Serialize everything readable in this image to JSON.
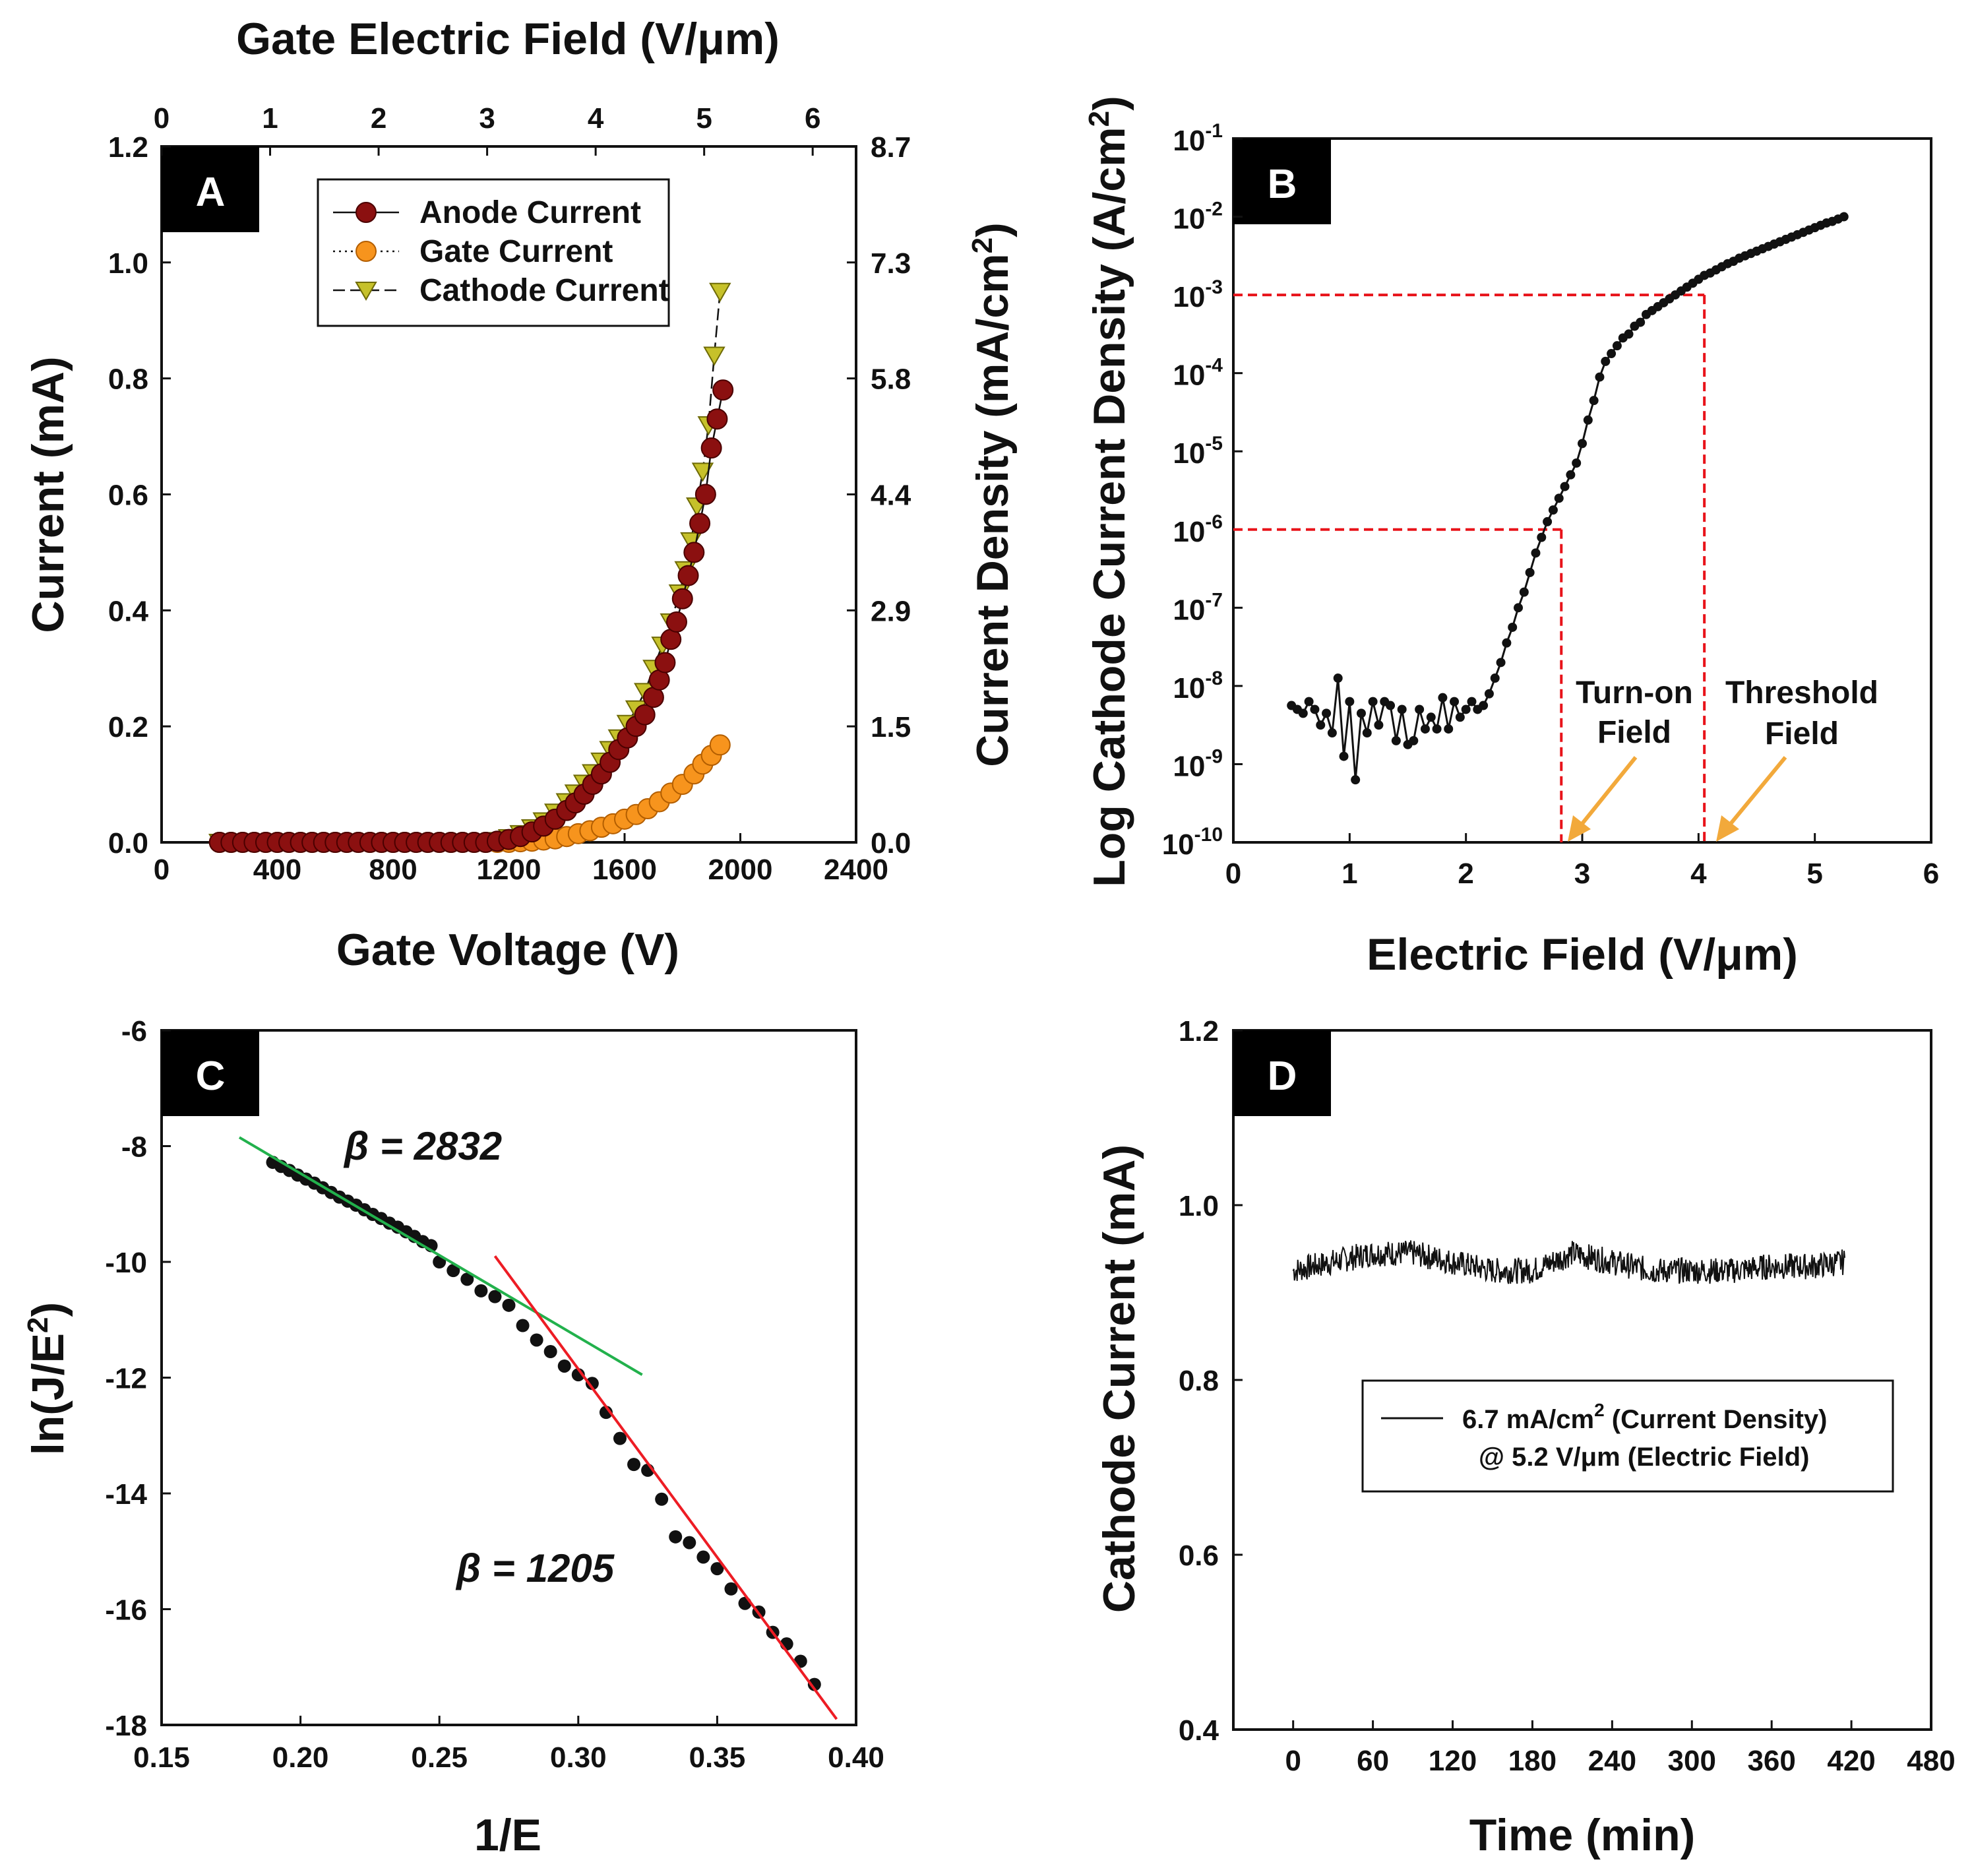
{
  "colors": {
    "anode": "#8b1010",
    "gate": "#f7941d",
    "cathode": "#c6c12a",
    "dash": "#e8131a",
    "arrow": "#f2a93b",
    "fitGreen": "#22b14c",
    "fitRed": "#ed1c24",
    "ink": "#111111"
  },
  "chart_data": [
    {
      "panel": "A",
      "type": "scatter",
      "xlabel": "Gate Voltage (V)",
      "x_ticks": [
        "0",
        "400",
        "800",
        "1200",
        "1600",
        "2000",
        "2400"
      ],
      "xlim": [
        0,
        2400
      ],
      "x2label": "Gate Electric Field (V/μm)",
      "x2_ticks": [
        "0",
        "1",
        "2",
        "3",
        "4",
        "5",
        "6"
      ],
      "x2lim": [
        0,
        6.4
      ],
      "ylabel": "Current (mA)",
      "y_ticks": [
        "0.0",
        "0.2",
        "0.4",
        "0.6",
        "0.8",
        "1.0",
        "1.2"
      ],
      "ylim": [
        0,
        1.2
      ],
      "y2label": "Current Density (mA/cm",
      "y2label_sup": "2",
      "y2label_end": ")",
      "y2_ticks": [
        "0.0",
        "1.5",
        "2.9",
        "4.4",
        "5.8",
        "7.3",
        "8.7"
      ],
      "legend": [
        "Anode Current",
        "Gate Current",
        "Cathode Current"
      ],
      "series": [
        {
          "name": "Anode Current",
          "x": [
            200,
            240,
            280,
            320,
            360,
            400,
            440,
            480,
            520,
            560,
            600,
            640,
            680,
            720,
            760,
            800,
            840,
            880,
            920,
            960,
            1000,
            1040,
            1080,
            1120,
            1160,
            1200,
            1240,
            1280,
            1320,
            1360,
            1400,
            1430,
            1460,
            1490,
            1520,
            1550,
            1580,
            1610,
            1640,
            1670,
            1700,
            1720,
            1740,
            1760,
            1780,
            1800,
            1820,
            1840,
            1860,
            1880,
            1900,
            1920,
            1940
          ],
          "y": [
            0,
            0,
            0,
            0,
            0,
            0,
            0,
            0,
            0,
            0,
            0,
            0,
            0,
            0,
            0,
            0,
            0,
            0,
            0,
            0,
            0,
            0,
            0,
            0,
            0.002,
            0.005,
            0.01,
            0.018,
            0.028,
            0.04,
            0.055,
            0.068,
            0.083,
            0.1,
            0.118,
            0.138,
            0.16,
            0.18,
            0.2,
            0.22,
            0.25,
            0.28,
            0.31,
            0.35,
            0.38,
            0.42,
            0.46,
            0.5,
            0.55,
            0.6,
            0.68,
            0.73,
            0.78
          ]
        },
        {
          "name": "Gate Current",
          "x": [
            200,
            240,
            280,
            320,
            360,
            400,
            440,
            480,
            520,
            560,
            600,
            640,
            680,
            720,
            760,
            800,
            840,
            880,
            920,
            960,
            1000,
            1040,
            1080,
            1120,
            1160,
            1200,
            1240,
            1280,
            1320,
            1360,
            1400,
            1440,
            1480,
            1520,
            1560,
            1600,
            1640,
            1680,
            1720,
            1760,
            1800,
            1840,
            1870,
            1900,
            1930
          ],
          "y": [
            0,
            0,
            0,
            0,
            0,
            0,
            0,
            0,
            0,
            0,
            0,
            0,
            0,
            0,
            0,
            0,
            0,
            0,
            0,
            0,
            0,
            0,
            0,
            0,
            0,
            0,
            0.001,
            0.002,
            0.004,
            0.006,
            0.01,
            0.015,
            0.02,
            0.026,
            0.032,
            0.04,
            0.048,
            0.058,
            0.07,
            0.085,
            0.1,
            0.118,
            0.135,
            0.15,
            0.168
          ]
        },
        {
          "name": "Cathode Current",
          "x": [
            200,
            240,
            280,
            320,
            360,
            400,
            440,
            480,
            520,
            560,
            600,
            640,
            680,
            720,
            760,
            800,
            840,
            880,
            920,
            960,
            1000,
            1040,
            1080,
            1120,
            1160,
            1200,
            1240,
            1280,
            1320,
            1360,
            1400,
            1430,
            1460,
            1490,
            1520,
            1550,
            1580,
            1610,
            1640,
            1670,
            1700,
            1730,
            1760,
            1790,
            1810,
            1830,
            1850,
            1870,
            1890,
            1910,
            1930
          ],
          "y": [
            0,
            0,
            0,
            0,
            0,
            0,
            0,
            0,
            0,
            0,
            0,
            0,
            0,
            0,
            0,
            0,
            0,
            0,
            0,
            0,
            0,
            0,
            0,
            0,
            0.003,
            0.008,
            0.015,
            0.025,
            0.037,
            0.052,
            0.07,
            0.085,
            0.102,
            0.12,
            0.14,
            0.16,
            0.18,
            0.205,
            0.23,
            0.26,
            0.3,
            0.34,
            0.38,
            0.43,
            0.47,
            0.52,
            0.58,
            0.64,
            0.72,
            0.84,
            0.95
          ]
        }
      ]
    },
    {
      "panel": "B",
      "type": "line",
      "xlabel": "Electric Field (V/μm)",
      "x_ticks": [
        "0",
        "1",
        "2",
        "3",
        "4",
        "5",
        "6"
      ],
      "xlim": [
        0,
        6
      ],
      "ylabel": "Log Cathode Current Density (A/cm",
      "ylabel_sup": "2",
      "ylabel_end": ")",
      "ylim_log10": [
        -10,
        -1
      ],
      "y_tick_exponents": [
        "-10",
        "-9",
        "-8",
        "-7",
        "-6",
        "-5",
        "-4",
        "-3",
        "-2",
        "-1"
      ],
      "annotations": [
        {
          "text": [
            "Turn-on",
            "Field"
          ],
          "x": 2.82,
          "j_log10": -6
        },
        {
          "text": [
            "Threshold",
            "Field"
          ],
          "x": 4.05,
          "j_log10": -3
        }
      ],
      "x": [
        0.5,
        0.55,
        0.6,
        0.65,
        0.7,
        0.75,
        0.8,
        0.85,
        0.9,
        0.95,
        1.0,
        1.05,
        1.1,
        1.15,
        1.2,
        1.25,
        1.3,
        1.35,
        1.4,
        1.45,
        1.5,
        1.55,
        1.6,
        1.65,
        1.7,
        1.75,
        1.8,
        1.85,
        1.9,
        1.95,
        2.0,
        2.05,
        2.1,
        2.15,
        2.2,
        2.25,
        2.3,
        2.35,
        2.4,
        2.45,
        2.5,
        2.55,
        2.6,
        2.65,
        2.7,
        2.75,
        2.8,
        2.85,
        2.9,
        2.95,
        3.0,
        3.05,
        3.1,
        3.15,
        3.2,
        3.25,
        3.3,
        3.35,
        3.4,
        3.45,
        3.5,
        3.55,
        3.6,
        3.65,
        3.7,
        3.75,
        3.8,
        3.85,
        3.9,
        3.95,
        4.0,
        4.05,
        4.1,
        4.15,
        4.2,
        4.25,
        4.3,
        4.35,
        4.4,
        4.45,
        4.5,
        4.55,
        4.6,
        4.65,
        4.7,
        4.75,
        4.8,
        4.85,
        4.9,
        4.95,
        5.0,
        5.05,
        5.1,
        5.15,
        5.2,
        5.25
      ],
      "log10_j": [
        -8.25,
        -8.3,
        -8.35,
        -8.2,
        -8.3,
        -8.5,
        -8.35,
        -8.6,
        -7.9,
        -8.9,
        -8.2,
        -9.2,
        -8.35,
        -8.6,
        -8.2,
        -8.5,
        -8.2,
        -8.25,
        -8.7,
        -8.3,
        -8.75,
        -8.7,
        -8.3,
        -8.55,
        -8.4,
        -8.55,
        -8.15,
        -8.55,
        -8.2,
        -8.4,
        -8.3,
        -8.2,
        -8.3,
        -8.25,
        -8.1,
        -7.9,
        -7.7,
        -7.45,
        -7.25,
        -7.0,
        -6.8,
        -6.55,
        -6.3,
        -6.1,
        -5.9,
        -5.75,
        -5.6,
        -5.45,
        -5.3,
        -5.15,
        -4.9,
        -4.6,
        -4.35,
        -4.05,
        -3.85,
        -3.75,
        -3.65,
        -3.55,
        -3.5,
        -3.4,
        -3.35,
        -3.25,
        -3.2,
        -3.15,
        -3.1,
        -3.05,
        -3.0,
        -2.95,
        -2.9,
        -2.85,
        -2.8,
        -2.75,
        -2.72,
        -2.68,
        -2.64,
        -2.6,
        -2.57,
        -2.53,
        -2.5,
        -2.47,
        -2.44,
        -2.41,
        -2.38,
        -2.35,
        -2.32,
        -2.29,
        -2.26,
        -2.23,
        -2.2,
        -2.17,
        -2.14,
        -2.11,
        -2.08,
        -2.06,
        -2.03,
        -2.0
      ]
    },
    {
      "panel": "C",
      "type": "scatter",
      "xlabel": "1/E",
      "x_ticks": [
        "0.15",
        "0.20",
        "0.25",
        "0.30",
        "0.35",
        "0.40"
      ],
      "xlim": [
        0.15,
        0.4
      ],
      "ylabel": "ln(J/E",
      "ylabel_sup": "2",
      "ylabel_end": ")",
      "y_ticks": [
        "-18",
        "-16",
        "-14",
        "-12",
        "-10",
        "-8",
        "-6"
      ],
      "ylim": [
        -18,
        -6
      ],
      "annotations": [
        "β = 2832",
        "β = 1205"
      ],
      "fits": [
        {
          "name": "green",
          "x": [
            0.178,
            0.323
          ],
          "y": [
            -7.85,
            -11.95
          ]
        },
        {
          "name": "red",
          "x": [
            0.27,
            0.393
          ],
          "y": [
            -9.9,
            -17.9
          ]
        }
      ],
      "x": [
        0.19,
        0.193,
        0.196,
        0.199,
        0.202,
        0.205,
        0.208,
        0.211,
        0.214,
        0.217,
        0.22,
        0.223,
        0.226,
        0.229,
        0.232,
        0.235,
        0.238,
        0.241,
        0.244,
        0.247,
        0.25,
        0.255,
        0.26,
        0.265,
        0.27,
        0.275,
        0.28,
        0.285,
        0.29,
        0.295,
        0.3,
        0.305,
        0.31,
        0.315,
        0.32,
        0.325,
        0.33,
        0.335,
        0.34,
        0.345,
        0.35,
        0.355,
        0.36,
        0.365,
        0.37,
        0.375,
        0.38,
        0.385
      ],
      "y": [
        -8.28,
        -8.35,
        -8.42,
        -8.5,
        -8.57,
        -8.64,
        -8.72,
        -8.8,
        -8.88,
        -8.95,
        -9.02,
        -9.1,
        -9.18,
        -9.25,
        -9.33,
        -9.4,
        -9.48,
        -9.56,
        -9.65,
        -9.72,
        -10.0,
        -10.15,
        -10.3,
        -10.5,
        -10.6,
        -10.75,
        -11.1,
        -11.35,
        -11.55,
        -11.8,
        -11.95,
        -12.1,
        -12.6,
        -13.05,
        -13.5,
        -13.6,
        -14.1,
        -14.75,
        -14.85,
        -15.1,
        -15.3,
        -15.65,
        -15.9,
        -16.05,
        -16.4,
        -16.6,
        -16.9,
        -17.3
      ]
    },
    {
      "panel": "D",
      "type": "line",
      "xlabel": "Time (min)",
      "x_ticks": [
        "0",
        "60",
        "120",
        "180",
        "240",
        "300",
        "360",
        "420",
        "480"
      ],
      "xlim": [
        -45,
        480
      ],
      "ylabel": "Cathode Current (mA)",
      "y_ticks": [
        "0.4",
        "0.6",
        "0.8",
        "1.0",
        "1.2"
      ],
      "ylim": [
        0.4,
        1.2
      ],
      "legend": {
        "line1": "6.7 mA/cm",
        "line1_sup": "2",
        "line1_end": " (Current Density)",
        "line2": "@ 5.2 V/μm (Electric Field)"
      },
      "mean_profile": {
        "x": [
          0,
          30,
          60,
          90,
          120,
          150,
          180,
          210,
          240,
          270,
          300,
          330,
          360,
          390,
          415
        ],
        "y": [
          0.925,
          0.935,
          0.945,
          0.945,
          0.935,
          0.925,
          0.925,
          0.945,
          0.935,
          0.925,
          0.925,
          0.925,
          0.93,
          0.93,
          0.935
        ],
        "noise_amplitude": 0.015
      }
    }
  ]
}
